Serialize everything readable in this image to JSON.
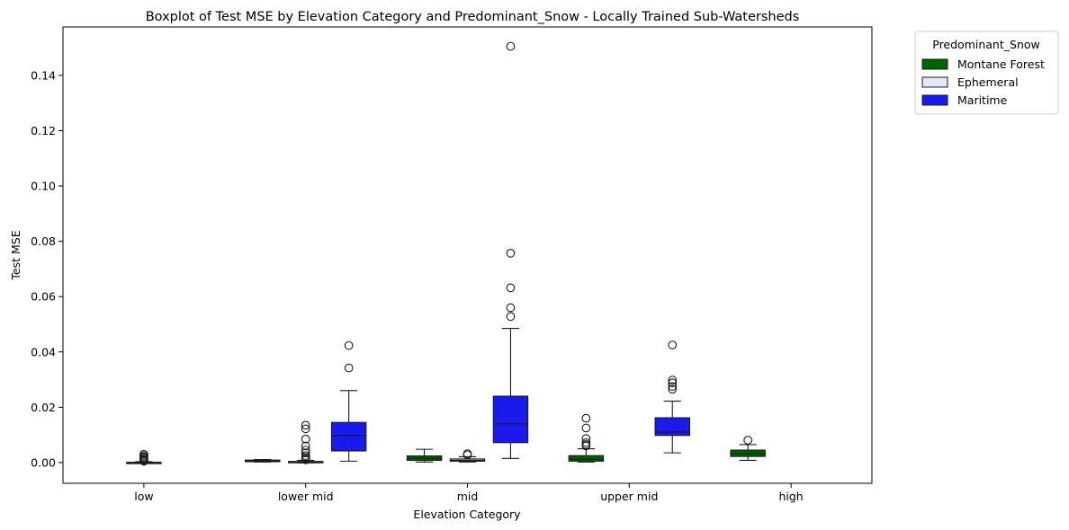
{
  "chart_data": {
    "type": "boxplot",
    "title": "Boxplot of Test MSE by Elevation Category and Predominant_Snow - Locally Trained Sub-Watersheds",
    "xlabel": "Elevation Category",
    "ylabel": "Test MSE",
    "ylim": [
      -0.0075,
      0.1575
    ],
    "yticks": [
      0.0,
      0.02,
      0.04,
      0.06,
      0.08,
      0.1,
      0.12,
      0.14
    ],
    "ytick_labels": [
      "0.00",
      "0.02",
      "0.04",
      "0.06",
      "0.08",
      "0.10",
      "0.12",
      "0.14"
    ],
    "categories": [
      "low",
      "lower mid",
      "mid",
      "upper mid",
      "high"
    ],
    "grid": false,
    "legend": {
      "title": "Predominant_Snow",
      "placement": "outside-top-right",
      "entries": [
        "Montane Forest",
        "Ephemeral",
        "Maritime"
      ]
    },
    "series": [
      {
        "name": "Montane Forest",
        "color": "#006400",
        "boxes": [
          null,
          {
            "whislo": 0.0002,
            "q1": 0.0003,
            "med": 0.0006,
            "q3": 0.0009,
            "whishi": 0.0011,
            "fliers": []
          },
          {
            "whislo": 0.0002,
            "q1": 0.0008,
            "med": 0.0015,
            "q3": 0.0024,
            "whishi": 0.0048,
            "fliers": []
          },
          {
            "whislo": 0.0002,
            "q1": 0.0005,
            "med": 0.0012,
            "q3": 0.0025,
            "whishi": 0.005,
            "fliers": [
              0.006,
              0.0065,
              0.0072,
              0.0087,
              0.0125,
              0.016
            ]
          },
          {
            "whislo": 0.0008,
            "q1": 0.0022,
            "med": 0.0032,
            "q3": 0.0045,
            "whishi": 0.0065,
            "fliers": [
              0.0081
            ]
          }
        ]
      },
      {
        "name": "Ephemeral",
        "color": "#e6e6fa",
        "boxes": [
          {
            "whislo": -0.0003,
            "q1": -0.0002,
            "med": -0.0001,
            "q3": 0.0001,
            "whishi": 0.0003,
            "fliers": [
              0.0005,
              0.0008,
              0.0012,
              0.0016,
              0.002,
              0.0025,
              0.003
            ]
          },
          {
            "whislo": -0.0001,
            "q1": 0.0,
            "med": 0.0002,
            "q3": 0.0004,
            "whishi": 0.0008,
            "fliers": [
              0.001,
              0.0013,
              0.0018,
              0.0025,
              0.0035,
              0.0045,
              0.006,
              0.0085,
              0.0122,
              0.0135
            ]
          },
          {
            "whislo": 0.0002,
            "q1": 0.0005,
            "med": 0.0008,
            "q3": 0.0013,
            "whishi": 0.0021,
            "fliers": [
              0.0028,
              0.0032
            ]
          },
          null,
          null
        ]
      },
      {
        "name": "Maritime",
        "color": "#1a1aee",
        "boxes": [
          null,
          {
            "whislo": 0.0005,
            "q1": 0.0042,
            "med": 0.0098,
            "q3": 0.0145,
            "whishi": 0.026,
            "fliers": [
              0.0342,
              0.0423
            ]
          },
          {
            "whislo": 0.0015,
            "q1": 0.0072,
            "med": 0.014,
            "q3": 0.024,
            "whishi": 0.0485,
            "fliers": [
              0.0528,
              0.056,
              0.0632,
              0.0757,
              0.1505
            ]
          },
          {
            "whislo": 0.0035,
            "q1": 0.0098,
            "med": 0.011,
            "q3": 0.0162,
            "whishi": 0.0222,
            "fliers": [
              0.0265,
              0.0275,
              0.0288,
              0.0298,
              0.0425
            ]
          },
          null
        ]
      }
    ]
  }
}
